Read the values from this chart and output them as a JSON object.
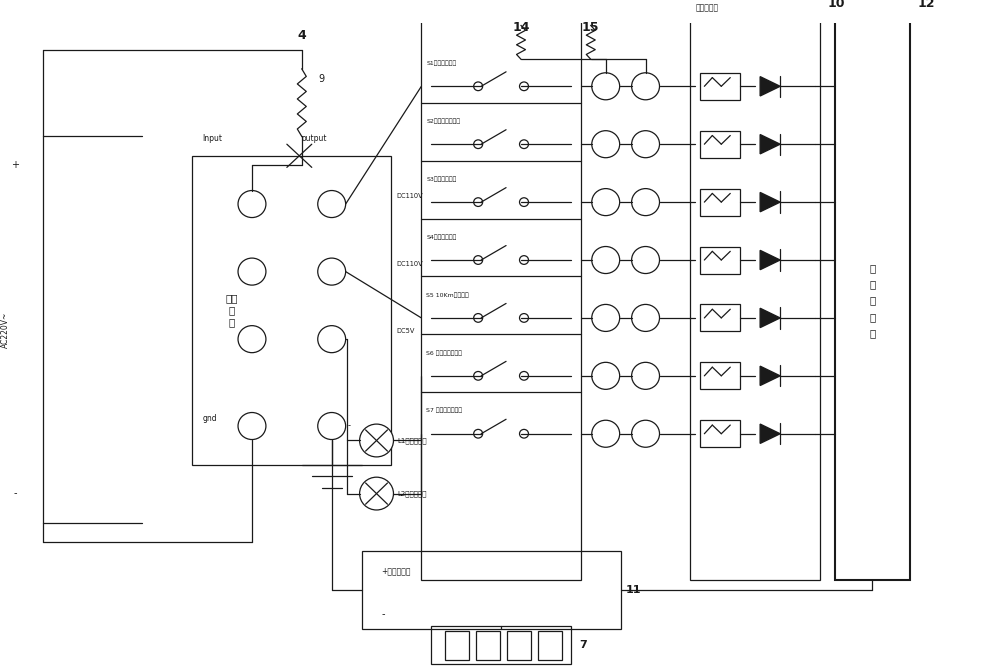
{
  "bg": "#ffffff",
  "lc": "#1a1a1a",
  "lw": 0.9,
  "fig_w": 10.0,
  "fig_h": 6.68,
  "S_labels": [
    "S1零速信号按鈕",
    "S2门功能信号按鈕",
    "S3开门信号按鈕",
    "S4关门信号按鈕",
    "S5 10Km信号按鈕",
    "S6 外側指示灯按鈕",
    "S7 内側指示灯按鈕"
  ],
  "btn_y": [
    62,
    56,
    50,
    44,
    38,
    32,
    26
  ],
  "psu_label": "开关\n电\n源",
  "relay_label": "门控维电器",
  "ctrl_label": "门\n控\n器\n电\n路",
  "L1_label": "L1外側指示灯",
  "L2_label": "L2内側指示灯",
  "counter_label": "+计数器电路",
  "counter_minus": "-",
  "Input": "Input",
  "output": "output",
  "DC110V_1": "DC110V",
  "DC110V_2": "DC110V",
  "DC5V": "DC5V",
  "gnd": "gnd",
  "AC220V": "AC220V~",
  "plus": "+",
  "minus": "-",
  "num4": "4",
  "num7": "7",
  "num9": "9",
  "num10": "10",
  "num11": "11",
  "num12": "12",
  "num14": "14",
  "num15": "15"
}
